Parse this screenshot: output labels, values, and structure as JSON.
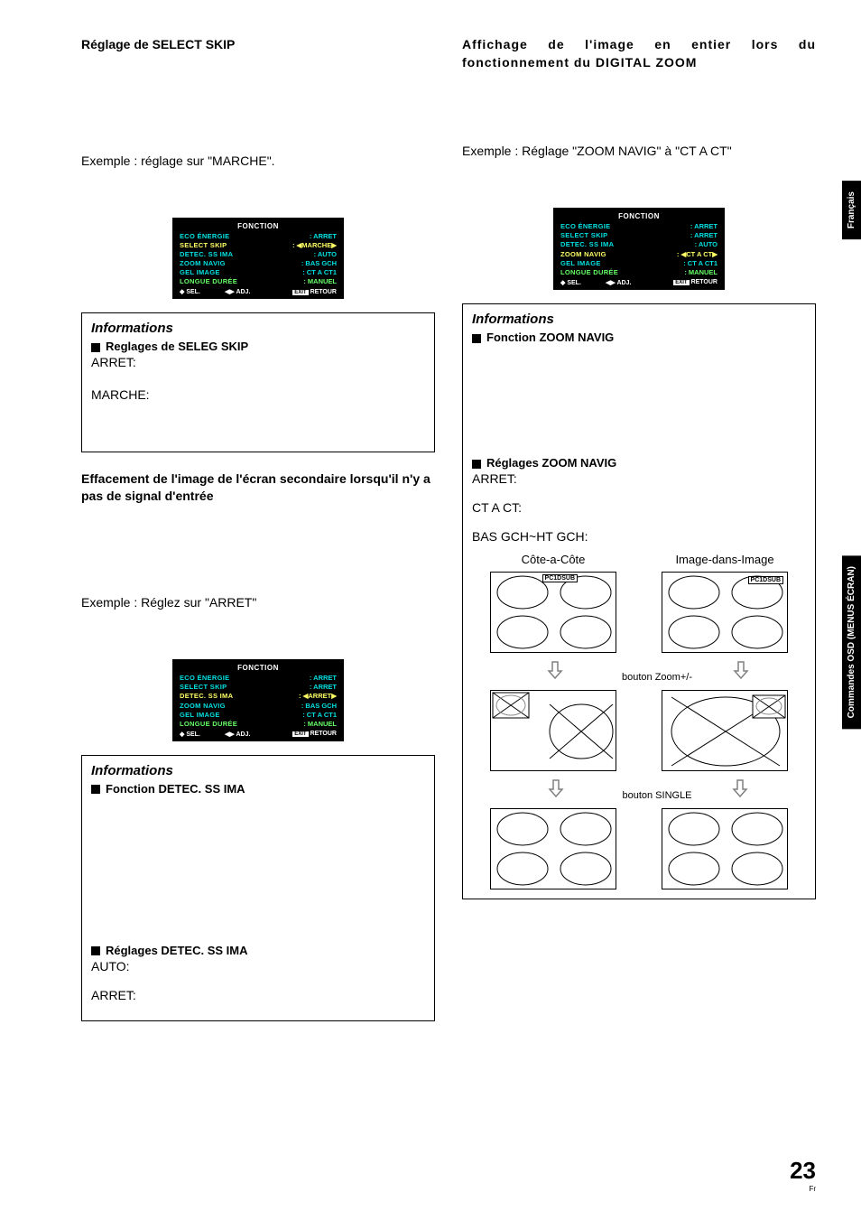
{
  "left": {
    "title": "Réglage de SELECT SKIP",
    "example1": "Exemple : réglage sur \"MARCHE\".",
    "osd1": {
      "title": "FONCTION",
      "rows": [
        {
          "label": "ECO ÉNERGIE",
          "value": ": ARRET",
          "color": "cyan"
        },
        {
          "label": "SELECT SKIP",
          "value": ": ◀MARCHE▶",
          "color": "yellow"
        },
        {
          "label": "DETEC. SS IMA",
          "value": ": AUTO",
          "color": "cyan"
        },
        {
          "label": "ZOOM NAVIG",
          "value": ": BAS GCH",
          "color": "cyan"
        },
        {
          "label": "GEL IMAGE",
          "value": ": CT A CT1",
          "color": "cyan"
        },
        {
          "label": "LONGUE DURÉE",
          "value": ": MANUEL",
          "color": "green"
        }
      ],
      "footer_sel": "SEL.",
      "footer_adj": "ADJ.",
      "footer_exit": "EXIT",
      "footer_retour": "RETOUR"
    },
    "info1": {
      "title": "Informations",
      "sub": "Reglages de SELEG SKIP",
      "lines": [
        "ARRET:",
        "",
        "MARCHE:"
      ]
    },
    "sub2": "Effacement de l'image de l'écran secondaire lorsqu'il n'y a pas de signal d'entrée",
    "example2": "Exemple : Réglez sur \"ARRET\"",
    "osd2": {
      "title": "FONCTION",
      "rows": [
        {
          "label": "ECO ÉNERGIE",
          "value": ": ARRET",
          "color": "cyan"
        },
        {
          "label": "SELECT SKIP",
          "value": ": ARRET",
          "color": "cyan"
        },
        {
          "label": "DETEC. SS IMA",
          "value": ": ◀ARRET▶",
          "color": "yellow"
        },
        {
          "label": "ZOOM NAVIG",
          "value": ": BAS GCH",
          "color": "cyan"
        },
        {
          "label": "GEL IMAGE",
          "value": ": CT A CT1",
          "color": "cyan"
        },
        {
          "label": "LONGUE DURÉE",
          "value": ": MANUEL",
          "color": "green"
        }
      ]
    },
    "info2": {
      "title": "Informations",
      "sub": "Fonction DETEC. SS IMA",
      "sub2": "Réglages DETEC. SS IMA",
      "lines2": [
        "AUTO:",
        "",
        "ARRET:"
      ]
    }
  },
  "right": {
    "title": "Affichage de l'image en entier lors du fonctionnement du DIGITAL ZOOM",
    "example": "Exemple : Réglage \"ZOOM NAVIG\" à \"CT A CT\"",
    "osd": {
      "title": "FONCTION",
      "rows": [
        {
          "label": "ECO ÉNERGIE",
          "value": ": ARRET",
          "color": "cyan"
        },
        {
          "label": "SELECT SKIP",
          "value": ": ARRET",
          "color": "cyan"
        },
        {
          "label": "DETEC. SS IMA",
          "value": ": AUTO",
          "color": "cyan"
        },
        {
          "label": "ZOOM NAVIG",
          "value": ": ◀CT A CT▶",
          "color": "yellow"
        },
        {
          "label": "GEL IMAGE",
          "value": ": CT A CT1",
          "color": "cyan"
        },
        {
          "label": "LONGUE DURÉE",
          "value": ": MANUEL",
          "color": "green"
        }
      ]
    },
    "info": {
      "title": "Informations",
      "sub": "Fonction ZOOM NAVIG",
      "sub2": "Réglages ZOOM NAVIG",
      "lines": [
        "ARRET:",
        "",
        "CT A CT:",
        "",
        "BAS GCH~HT GCH:"
      ],
      "diag_left": "Côte-a-Côte",
      "diag_right": "Image-dans-Image",
      "pc_label": "PC1DSUB",
      "btn_zoom": "bouton Zoom+/-",
      "btn_single": "bouton SINGLE"
    }
  },
  "tabs": {
    "lang": "Français",
    "section": "Commandes OSD (MENUS ÉCRAN)"
  },
  "page": "23",
  "page_suffix": "Fr"
}
